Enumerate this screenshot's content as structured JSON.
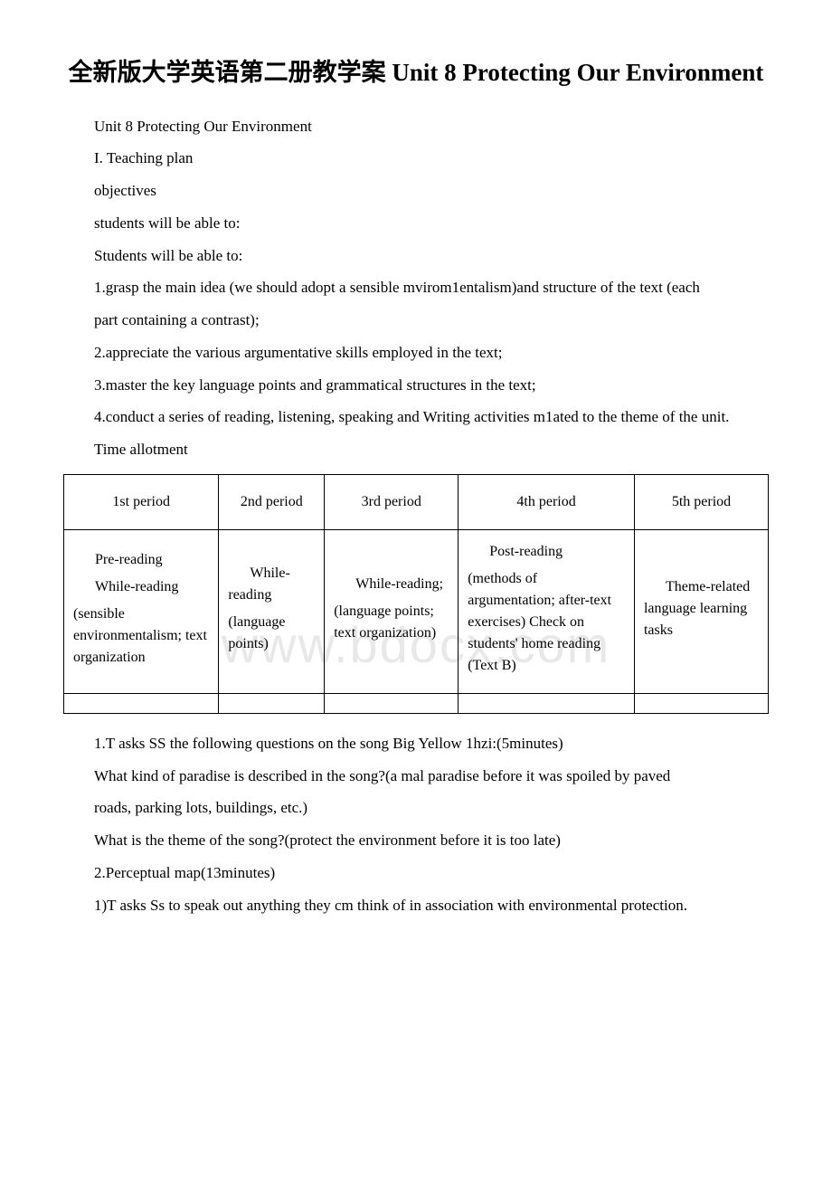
{
  "title": "全新版大学英语第二册教学案 Unit 8 Protecting Our Environment",
  "watermark": "www.bdocx.com",
  "paragraphs_before": [
    "Unit 8 Protecting Our Environment",
    "I. Teaching plan",
    "objectives",
    "students will be able to:",
    "Students will be able to:",
    "1.grasp the main idea (we should adopt a sensible mvirom1entalism)and structure of the text (each",
    "part containing a contrast);",
    "2.appreciate the various argumentative skills employed in the text;",
    "3.master the key language points and grammatical structures in the text;",
    "4.conduct a series of reading, listening, speaking and Writing activities m1ated to the theme of the unit.",
    "Time allotment"
  ],
  "table": {
    "headers": [
      "1st period",
      "2nd period",
      "3rd period",
      "4th period",
      "5th period"
    ],
    "row2": {
      "c1_line1": "Pre-reading",
      "c1_line2": "While-reading",
      "c1_line3": "(sensible environmentalism; text organization",
      "c2_line1": "While-reading",
      "c2_line2": "(language points)",
      "c3_line1": "While-reading;",
      "c3_line2": "(language points; text organization)",
      "c4_line1": "Post-reading",
      "c4_line2": "(methods of argumentation; after-text exercises) Check on students' home reading (Text B)",
      "c5_line1": "Theme-related language learning tasks"
    }
  },
  "paragraphs_after": [
    "1.T asks SS the following questions on the song Big Yellow 1hzi:(5minutes)",
    "What kind of paradise is described in the song?(a mal paradise before it was spoiled by paved",
    "roads, parking lots, buildings, etc.)",
    "What is the theme of the song?(protect the environment before it is too late)",
    "2.Perceptual map(13minutes)",
    "1)T asks Ss to speak out anything they cm think of in association with environmental protection."
  ],
  "colors": {
    "text": "#000000",
    "background": "#ffffff",
    "watermark": "#e8e8e8",
    "border": "#000000"
  }
}
